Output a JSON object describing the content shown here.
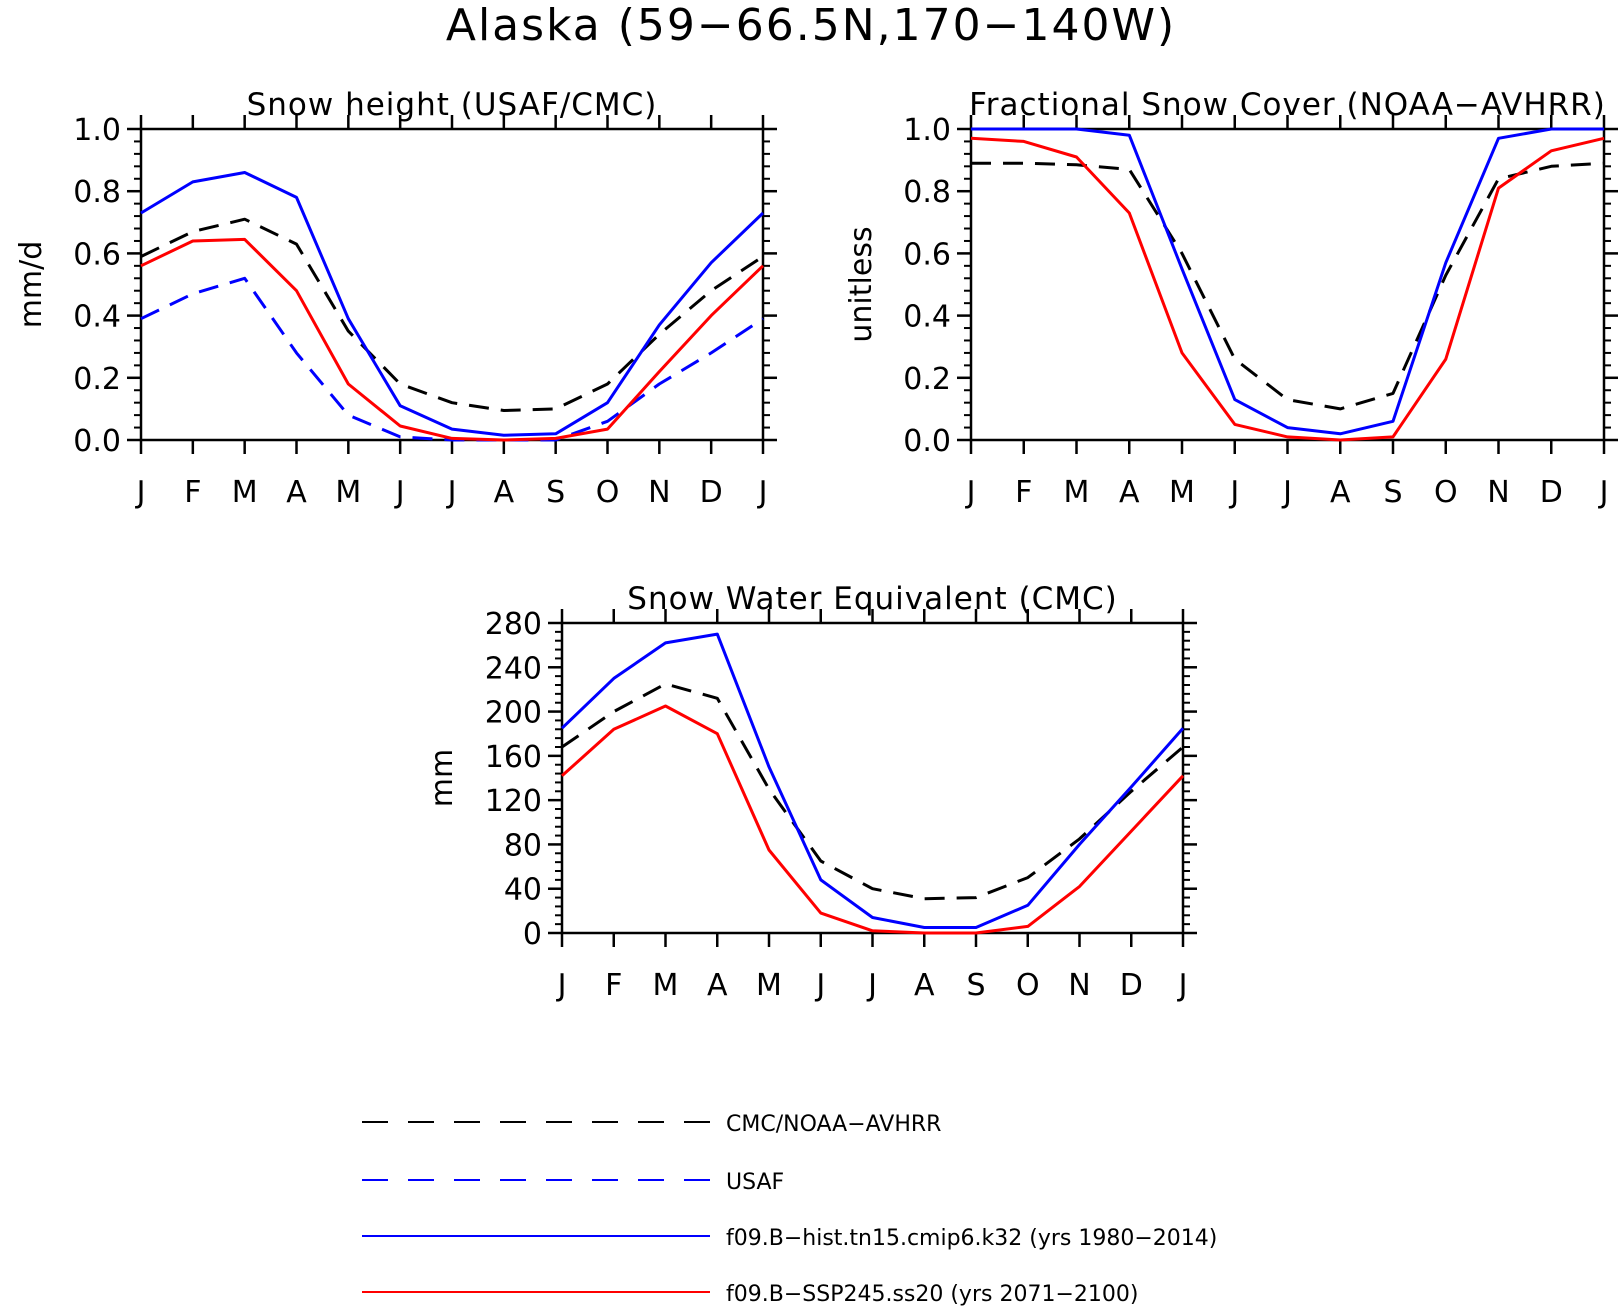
{
  "figure": {
    "title": "Alaska (59−66.5N,170−140W)"
  },
  "colors": {
    "obs": "#000000",
    "usaf": "#0000ff",
    "hist": "#0000ff",
    "ssp": "#ff0000"
  },
  "chart_data": [
    {
      "type": "line",
      "title": "Snow height (USAF/CMC)",
      "ylabel": "mm/d",
      "xlabel": "",
      "categories": [
        "J",
        "F",
        "M",
        "A",
        "M",
        "J",
        "J",
        "A",
        "S",
        "O",
        "N",
        "D",
        "J"
      ],
      "ylim": [
        0,
        1.0
      ],
      "yticks": [
        "0.0",
        "0.2",
        "0.4",
        "0.6",
        "0.8",
        "1.0"
      ],
      "grid": false,
      "series": [
        {
          "key": "obs",
          "dash": "dash",
          "values": [
            0.59,
            0.67,
            0.71,
            0.63,
            0.35,
            0.18,
            0.12,
            0.095,
            0.1,
            0.18,
            0.34,
            0.48,
            0.59
          ]
        },
        {
          "key": "usaf",
          "dash": "dash",
          "values": [
            0.39,
            0.47,
            0.52,
            0.28,
            0.08,
            0.01,
            0.0,
            0.0,
            0.0,
            0.06,
            0.18,
            0.28,
            0.39
          ]
        },
        {
          "key": "hist",
          "dash": "solid",
          "values": [
            0.73,
            0.83,
            0.86,
            0.78,
            0.39,
            0.11,
            0.035,
            0.015,
            0.02,
            0.12,
            0.37,
            0.57,
            0.73
          ]
        },
        {
          "key": "ssp",
          "dash": "solid",
          "values": [
            0.56,
            0.64,
            0.645,
            0.48,
            0.18,
            0.045,
            0.005,
            0.0,
            0.005,
            0.035,
            0.22,
            0.4,
            0.56
          ]
        }
      ]
    },
    {
      "type": "line",
      "title": "Fractional Snow Cover (NOAA−AVHRR)",
      "ylabel": "unitless",
      "xlabel": "",
      "categories": [
        "J",
        "F",
        "M",
        "A",
        "M",
        "J",
        "J",
        "A",
        "S",
        "O",
        "N",
        "D",
        "J"
      ],
      "ylim": [
        0,
        1.0
      ],
      "yticks": [
        "0.0",
        "0.2",
        "0.4",
        "0.6",
        "0.8",
        "1.0"
      ],
      "grid": false,
      "series": [
        {
          "key": "obs",
          "dash": "dash",
          "values": [
            0.89,
            0.89,
            0.885,
            0.87,
            0.6,
            0.26,
            0.13,
            0.1,
            0.15,
            0.53,
            0.84,
            0.88,
            0.89
          ]
        },
        {
          "key": "hist",
          "dash": "solid",
          "values": [
            1.0,
            1.0,
            1.0,
            0.98,
            0.55,
            0.13,
            0.04,
            0.02,
            0.06,
            0.57,
            0.97,
            1.0,
            1.0
          ]
        },
        {
          "key": "ssp",
          "dash": "solid",
          "values": [
            0.97,
            0.96,
            0.91,
            0.73,
            0.28,
            0.05,
            0.01,
            0.0,
            0.01,
            0.26,
            0.81,
            0.93,
            0.97
          ]
        }
      ]
    },
    {
      "type": "line",
      "title": "Snow Water Equivalent (CMC)",
      "ylabel": "mm",
      "xlabel": "",
      "categories": [
        "J",
        "F",
        "M",
        "A",
        "M",
        "J",
        "J",
        "A",
        "S",
        "O",
        "N",
        "D",
        "J"
      ],
      "ylim": [
        0,
        280
      ],
      "yticks": [
        "0",
        "40",
        "80",
        "120",
        "160",
        "200",
        "240",
        "280"
      ],
      "grid": false,
      "series": [
        {
          "key": "obs",
          "dash": "dash",
          "values": [
            168,
            200,
            225,
            212,
            130,
            65,
            40,
            31,
            32,
            50,
            85,
            128,
            168
          ]
        },
        {
          "key": "hist",
          "dash": "solid",
          "values": [
            185,
            230,
            262,
            270,
            150,
            48,
            14,
            5,
            5,
            25,
            80,
            132,
            185
          ]
        },
        {
          "key": "ssp",
          "dash": "solid",
          "values": [
            142,
            184,
            205,
            180,
            75,
            18,
            2,
            0,
            0,
            6,
            42,
            92,
            142
          ]
        }
      ]
    }
  ],
  "legend": {
    "placement": "bottom-center",
    "entries": [
      {
        "key": "obs",
        "label": "CMC/NOAA−AVHRR",
        "dash": "dash"
      },
      {
        "key": "usaf",
        "label": "USAF",
        "dash": "dash"
      },
      {
        "key": "hist",
        "label": "f09.B−hist.tn15.cmip6.k32 (yrs 1980−2014)",
        "dash": "solid"
      },
      {
        "key": "ssp",
        "label": "f09.B−SSP245.ss20 (yrs 2071−2100)",
        "dash": "solid"
      }
    ]
  }
}
